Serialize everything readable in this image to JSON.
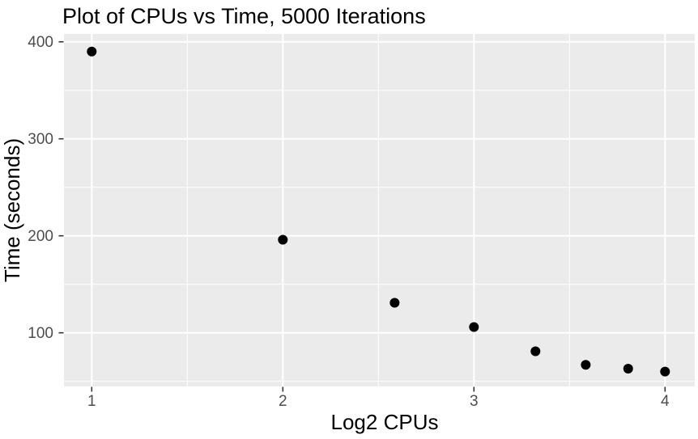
{
  "chart_data": {
    "type": "scatter",
    "title": "Plot of CPUs vs Time, 5000 Iterations",
    "xlabel": "Log2 CPUs",
    "ylabel": "Time (seconds)",
    "xlim": [
      0.8547,
      4.1555
    ],
    "ylim": [
      44.7,
      408.1
    ],
    "x_ticks": [
      1,
      2,
      3,
      4
    ],
    "x_tick_labels": [
      "1",
      "2",
      "3",
      "4"
    ],
    "x_minor_gridlines": [
      1.5,
      2.5,
      3.5
    ],
    "y_ticks": [
      100,
      200,
      300,
      400
    ],
    "y_tick_labels": [
      "100",
      "200",
      "300",
      "400"
    ],
    "y_minor_gridlines": [
      50,
      150,
      250,
      350
    ],
    "grid": "on",
    "legend": "none",
    "points": [
      {
        "x": 1.0,
        "y": 390
      },
      {
        "x": 2.0,
        "y": 196
      },
      {
        "x": 2.585,
        "y": 131
      },
      {
        "x": 3.0,
        "y": 106
      },
      {
        "x": 3.322,
        "y": 81
      },
      {
        "x": 3.585,
        "y": 67
      },
      {
        "x": 3.807,
        "y": 63
      },
      {
        "x": 4.0,
        "y": 60
      }
    ],
    "colors": {
      "panel_background": "#EBEBEB",
      "gridline": "#FFFFFF",
      "point": "#000000",
      "tick_mark": "#333333",
      "tick_label": "#4D4D4D",
      "title_text": "#000000",
      "page_background": "#FFFFFF"
    }
  }
}
